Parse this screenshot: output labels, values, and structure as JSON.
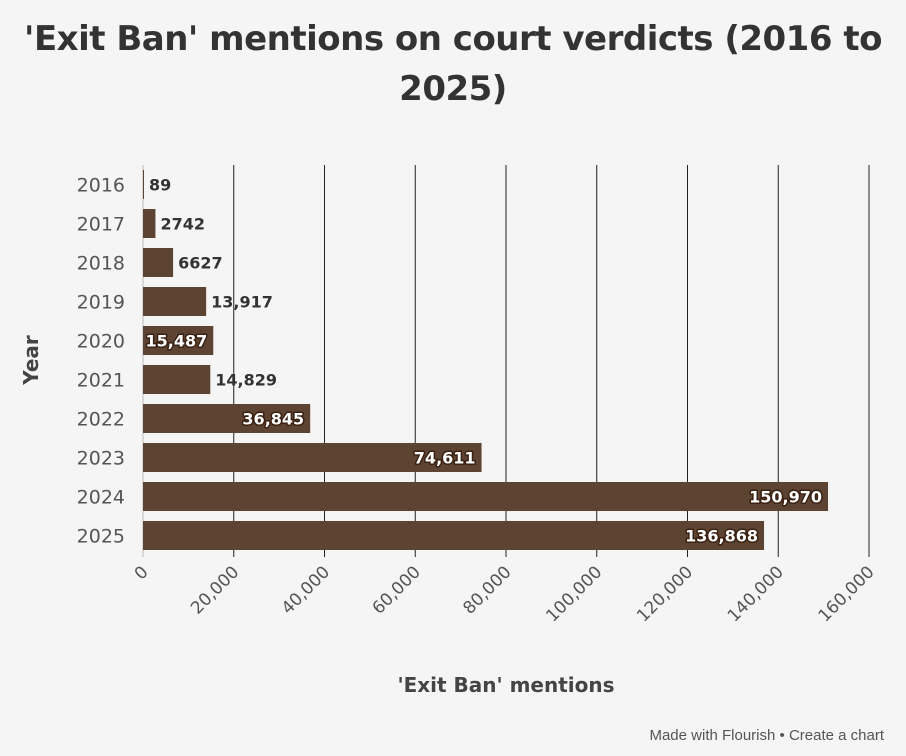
{
  "chart_data": {
    "type": "bar",
    "orientation": "horizontal",
    "title": "'Exit Ban' mentions on court verdicts (2016 to 2025)",
    "xlabel": "'Exit Ban' mentions",
    "ylabel": "Year",
    "categories": [
      "2016",
      "2017",
      "2018",
      "2019",
      "2020",
      "2021",
      "2022",
      "2023",
      "2024",
      "2025"
    ],
    "values": [
      89,
      2742,
      6627,
      13917,
      15487,
      14829,
      36845,
      74611,
      150970,
      136868
    ],
    "value_labels": [
      "89",
      "2742",
      "6627",
      "13,917",
      "15,487",
      "14,829",
      "36,845",
      "74,611",
      "150,970",
      "136,868"
    ],
    "label_inside": [
      false,
      false,
      false,
      false,
      true,
      false,
      true,
      true,
      true,
      true
    ],
    "xlim": [
      0,
      160000
    ],
    "xticks": [
      0,
      20000,
      40000,
      60000,
      80000,
      100000,
      120000,
      140000,
      160000
    ],
    "xtick_labels": [
      "0",
      "20,000",
      "40,000",
      "60,000",
      "80,000",
      "100,000",
      "120,000",
      "140,000",
      "160,000"
    ],
    "grid": true,
    "bar_color": "#5c4332",
    "grid_color": "#222222",
    "background": "#f5f5f5"
  },
  "footer": {
    "made_with": "Made with Flourish",
    "separator": " • ",
    "create": "Create a chart"
  }
}
